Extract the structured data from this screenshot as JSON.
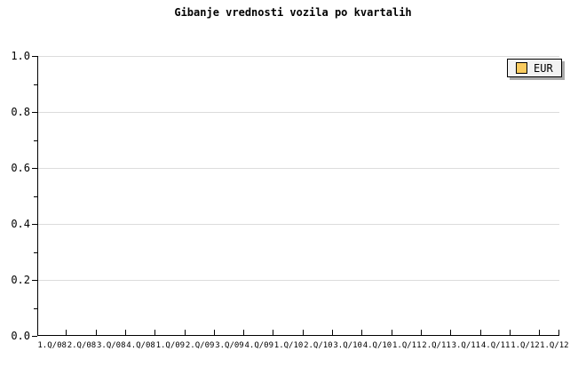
{
  "chart": {
    "legend": {
      "items": [
        {
          "label": "EUR",
          "swatch_color": "#facb5f"
        }
      ]
    },
    "colors": {
      "background": "#ffffff",
      "axis": "#000000",
      "gridline": "#dcdcdc",
      "legend_bg": "#f2f2f2",
      "legend_border": "#000000",
      "legend_shadow": "#aaaaaa"
    }
  },
  "chart_data": {
    "type": "line",
    "title": "Gibanje vrednosti vozila po kvartalih",
    "categories": [
      "1.Q/08",
      "2.Q/08",
      "3.Q/08",
      "4.Q/08",
      "1.Q/09",
      "2.Q/09",
      "3.Q/09",
      "4.Q/09",
      "1.Q/10",
      "2.Q/10",
      "3.Q/10",
      "4.Q/10",
      "1.Q/11",
      "2.Q/11",
      "3.Q/11",
      "4.Q/11",
      "1.Q/12",
      "1.Q/12"
    ],
    "series": [
      {
        "name": "EUR",
        "color": "#facb5f",
        "values": []
      }
    ],
    "xlabel": "",
    "ylabel": "",
    "ylim": [
      0.0,
      1.0
    ],
    "yticks_major": [
      "0.0",
      "0.2",
      "0.4",
      "0.6",
      "0.8",
      "1.0"
    ],
    "yticks_minor": [
      0.1,
      0.3,
      0.5,
      0.7,
      0.9
    ],
    "grid": "horizontal-major-only",
    "legend_position": "top-right"
  }
}
